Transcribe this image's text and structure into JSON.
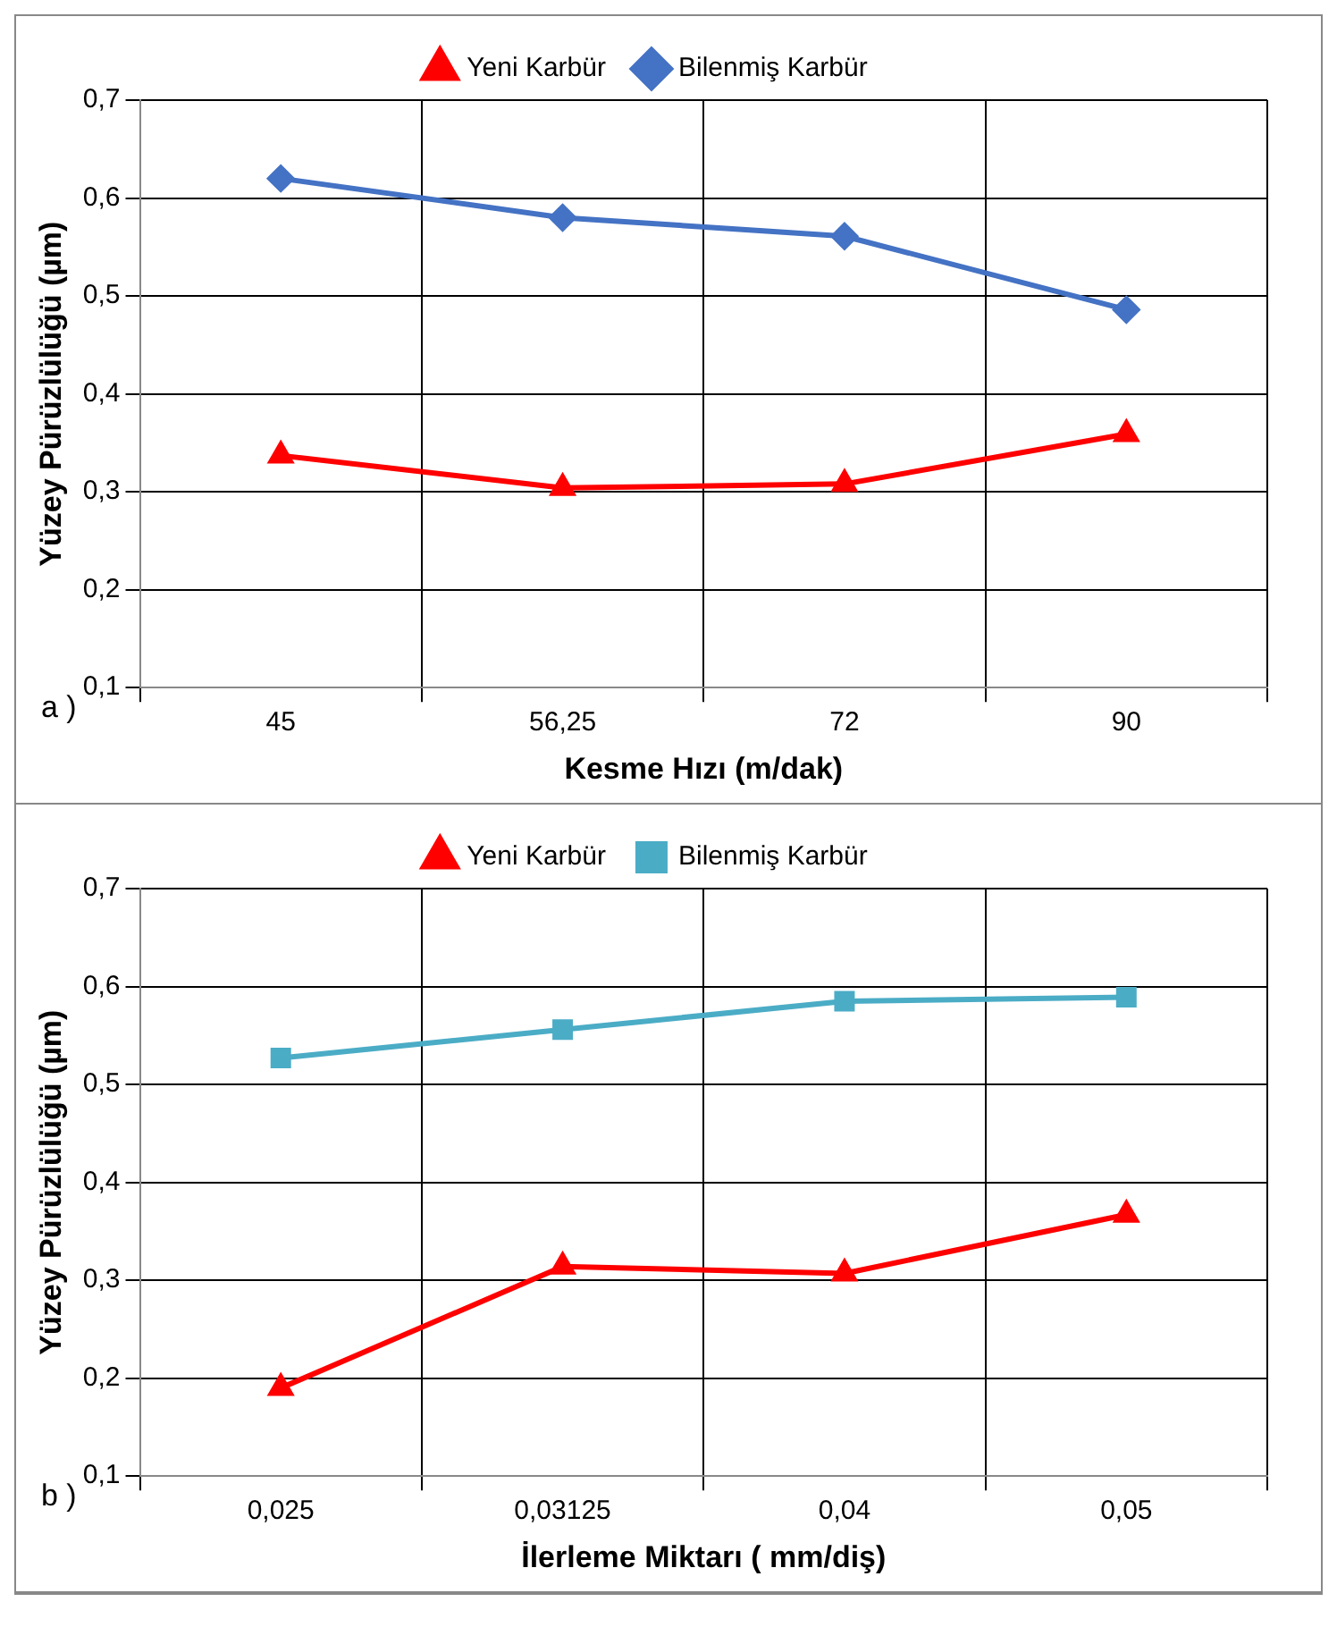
{
  "chart_data": [
    {
      "type": "line",
      "xlabel": "Kesme Hızı (m/dak)",
      "ylabel": "Yüzey Pürüzlülüğü (µm)",
      "categories": [
        "45",
        "56,25",
        "72",
        "90"
      ],
      "series": [
        {
          "name": "Yeni Karbür",
          "color": "#ff0000",
          "marker": "triangle",
          "values": [
            0.337,
            0.304,
            0.308,
            0.359
          ]
        },
        {
          "name": "Bilenmiş Karbür",
          "color": "#4472c4",
          "marker": "diamond",
          "values": [
            0.62,
            0.58,
            0.561,
            0.486
          ]
        }
      ],
      "ylim": [
        0.1,
        0.7
      ],
      "yticks": [
        {
          "value": 0.1,
          "label": "0,1"
        },
        {
          "value": 0.2,
          "label": "0,2"
        },
        {
          "value": 0.3,
          "label": "0,3"
        },
        {
          "value": 0.4,
          "label": "0,4"
        },
        {
          "value": 0.5,
          "label": "0,5"
        },
        {
          "value": 0.6,
          "label": "0,6"
        },
        {
          "value": 0.7,
          "label": "0,7"
        }
      ],
      "grid": true,
      "legend": "top",
      "line_style": "solid",
      "annotations": [
        "a )"
      ]
    },
    {
      "type": "line",
      "xlabel": "İlerleme Miktarı ( mm/diş)",
      "ylabel": "Yüzey Pürüzlülüğü (µm)",
      "categories": [
        "0,025",
        "0,03125",
        "0,04",
        "0,05"
      ],
      "series": [
        {
          "name": "Yeni Karbür",
          "color": "#ff0000",
          "marker": "triangle",
          "values": [
            0.19,
            0.314,
            0.307,
            0.367
          ]
        },
        {
          "name": "Bilenmiş Karbür",
          "color": "#4bacc6",
          "marker": "square",
          "values": [
            0.527,
            0.556,
            0.585,
            0.589
          ]
        }
      ],
      "ylim": [
        0.1,
        0.7
      ],
      "yticks": [
        {
          "value": 0.1,
          "label": "0,1"
        },
        {
          "value": 0.2,
          "label": "0,2"
        },
        {
          "value": 0.3,
          "label": "0,3"
        },
        {
          "value": 0.4,
          "label": "0,4"
        },
        {
          "value": 0.5,
          "label": "0,5"
        },
        {
          "value": 0.6,
          "label": "0,6"
        },
        {
          "value": 0.7,
          "label": "0,7"
        }
      ],
      "grid": true,
      "legend": "top",
      "line_style": "solid",
      "annotations": [
        "b )"
      ]
    }
  ]
}
